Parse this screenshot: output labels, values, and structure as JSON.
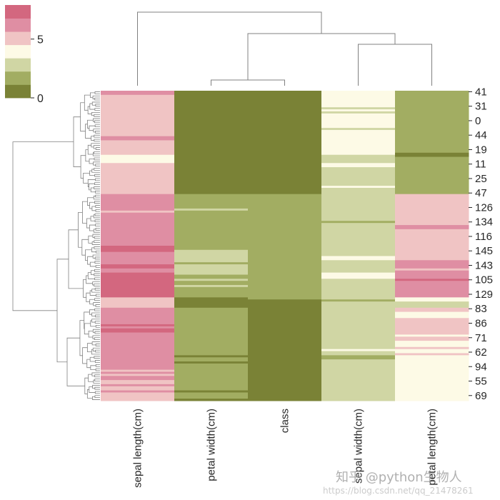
{
  "chart_data": {
    "type": "heatmap",
    "title": "",
    "columns": [
      "sepal length(cm)",
      "petal width(cm)",
      "class",
      "sepal width(cm)",
      "petal length(cm)"
    ],
    "row_count": 150,
    "row_tick_labels": [
      "41",
      "31",
      "0",
      "44",
      "19",
      "11",
      "25",
      "47",
      "126",
      "134",
      "116",
      "145",
      "143",
      "105",
      "129",
      "83",
      "86",
      "71",
      "62",
      "94",
      "55",
      "69"
    ],
    "row_tick_every": 7,
    "colorbar": {
      "vmin": 0,
      "vmax": 7.9,
      "ticks": [
        0,
        5
      ],
      "tick_labels": [
        "0",
        "5"
      ],
      "levels": 7,
      "colors": [
        "#7a8236",
        "#a2ad62",
        "#d0d6a4",
        "#fdfae6",
        "#f0c4c4",
        "#df8ea3",
        "#d3677f"
      ]
    },
    "column_values_runs_note_format": "[level, row_count]",
    "column_runs": [
      [
        [
          5,
          2
        ],
        [
          4,
          20
        ],
        [
          5,
          2
        ],
        [
          4,
          7
        ],
        [
          3,
          4
        ],
        [
          4,
          15
        ],
        [
          5,
          8
        ],
        [
          4,
          1
        ],
        [
          5,
          16
        ],
        [
          6,
          3
        ],
        [
          5,
          6
        ],
        [
          6,
          2
        ],
        [
          5,
          2
        ],
        [
          6,
          12
        ],
        [
          4,
          5
        ],
        [
          5,
          8
        ],
        [
          6,
          1
        ],
        [
          5,
          1
        ],
        [
          6,
          2
        ],
        [
          5,
          18
        ],
        [
          4,
          1
        ],
        [
          5,
          1
        ],
        [
          4,
          1
        ],
        [
          5,
          2
        ],
        [
          4,
          2
        ],
        [
          5,
          1
        ],
        [
          4,
          2
        ],
        [
          5,
          1
        ],
        [
          4,
          4
        ]
      ],
      [
        [
          0,
          50
        ],
        [
          1,
          7
        ],
        [
          2,
          1
        ],
        [
          1,
          19
        ],
        [
          2,
          6
        ],
        [
          1,
          1
        ],
        [
          2,
          5
        ],
        [
          1,
          2
        ],
        [
          2,
          1
        ],
        [
          1,
          2
        ],
        [
          2,
          1
        ],
        [
          1,
          5
        ],
        [
          0,
          5
        ],
        [
          1,
          23
        ],
        [
          0,
          1
        ],
        [
          1,
          2
        ],
        [
          0,
          1
        ],
        [
          1,
          13
        ],
        [
          0,
          1
        ],
        [
          1,
          3
        ],
        [
          0,
          1
        ]
      ],
      [
        [
          0,
          50
        ],
        [
          1,
          51
        ],
        [
          0,
          49
        ]
      ],
      [
        [
          3,
          8
        ],
        [
          2,
          1
        ],
        [
          3,
          1
        ],
        [
          2,
          1
        ],
        [
          3,
          7
        ],
        [
          2,
          1
        ],
        [
          3,
          12
        ],
        [
          2,
          4
        ],
        [
          3,
          2
        ],
        [
          2,
          9
        ],
        [
          3,
          1
        ],
        [
          2,
          16
        ],
        [
          1,
          1
        ],
        [
          2,
          16
        ],
        [
          3,
          2
        ],
        [
          2,
          6
        ],
        [
          3,
          3
        ],
        [
          2,
          10
        ],
        [
          1,
          1
        ],
        [
          2,
          23
        ],
        [
          3,
          1
        ],
        [
          2,
          2
        ],
        [
          1,
          2
        ],
        [
          2,
          20
        ]
      ],
      [
        [
          1,
          30
        ],
        [
          0,
          2
        ],
        [
          1,
          18
        ],
        [
          4,
          15
        ],
        [
          5,
          2
        ],
        [
          4,
          15
        ],
        [
          5,
          4
        ],
        [
          4,
          1
        ],
        [
          5,
          4
        ],
        [
          6,
          1
        ],
        [
          5,
          8
        ],
        [
          3,
          2
        ],
        [
          2,
          3
        ],
        [
          4,
          2
        ],
        [
          3,
          3
        ],
        [
          4,
          8
        ],
        [
          3,
          1
        ],
        [
          4,
          2
        ],
        [
          3,
          3
        ],
        [
          4,
          1
        ],
        [
          3,
          2
        ],
        [
          4,
          1
        ],
        [
          3,
          22
        ]
      ]
    ],
    "row_dendrogram": true,
    "col_dendrogram": true
  },
  "watermark": {
    "site": "知乎 @python生物人",
    "url": "https://blog.csdn.net/qq_21478261"
  }
}
